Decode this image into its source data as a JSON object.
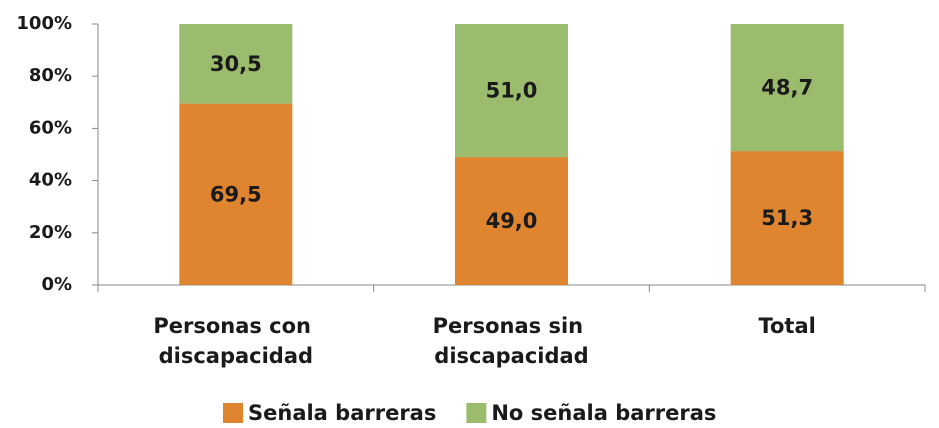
{
  "chart_data": {
    "type": "stacked_bar",
    "categories": [
      "Personas con discapacidad",
      "Personas sin discapacidad",
      "Total"
    ],
    "series": [
      {
        "name": "Señala barreras",
        "color": "#e0852f",
        "values": [
          69.5,
          49.0,
          51.3
        ],
        "value_labels": [
          "69,5",
          "49,0",
          "51,3"
        ]
      },
      {
        "name": "No señala barreras",
        "color": "#9bbb6d",
        "values": [
          30.5,
          51.0,
          48.7
        ],
        "value_labels": [
          "30,5",
          "51,0",
          "48,7"
        ]
      }
    ],
    "ylim": [
      0,
      100
    ],
    "yticks": [
      {
        "value": 0,
        "label": "0%"
      },
      {
        "value": 20,
        "label": "20%"
      },
      {
        "value": 40,
        "label": "40%"
      },
      {
        "value": 60,
        "label": "60%"
      },
      {
        "value": 80,
        "label": "80%"
      },
      {
        "value": 100,
        "label": "100%"
      }
    ],
    "legend": "bottom"
  }
}
